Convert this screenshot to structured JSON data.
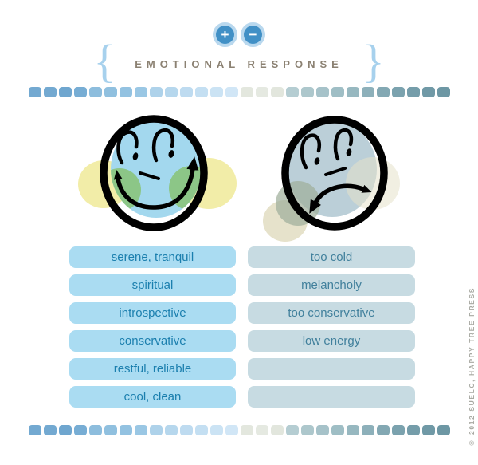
{
  "header": {
    "plus_button": "+",
    "minus_button": "−",
    "title": "EMOTIONAL RESPONSE",
    "brace_left": "{",
    "brace_right": "}"
  },
  "divider_colors": [
    "#73a9d1",
    "#73a9d1",
    "#6fa6cf",
    "#77add4",
    "#8dbddd",
    "#90c0df",
    "#93c2e1",
    "#9ac7e4",
    "#aed2ea",
    "#b6d7ed",
    "#bedbf0",
    "#c4dff2",
    "#cbe3f4",
    "#d1e6f6",
    "#e3e7de",
    "#e5e9e1",
    "#e2e6dd",
    "#b5cdd2",
    "#adc7cc",
    "#a6c2c9",
    "#9fbec5",
    "#97b8c0",
    "#8db0ba",
    "#83a8b3",
    "#7ba2ae",
    "#759daa",
    "#7099a6",
    "#6d97a4"
  ],
  "responses": {
    "positive": [
      "serene, tranquil",
      "spiritual",
      "introspective",
      "conservative",
      "restful, reliable",
      "cool, clean"
    ],
    "negative": [
      "too cold",
      "melancholy",
      "too conservative",
      "low energy",
      "",
      ""
    ]
  },
  "icons": {
    "plus": "plus-icon",
    "minus": "minus-icon",
    "happy_face": "happy-face-icon",
    "sad_face": "sad-face-icon"
  },
  "footer": {
    "copyright": "© 2012 SUELC, HAPPY TREE PRESS"
  },
  "colors": {
    "accent_blue": "#4190c6",
    "halo_blue": "#b9d8ee",
    "title_taupe": "#8b8172",
    "brace_blue": "#a7d1ed",
    "happy_fill": "#a3d8ee",
    "happy_ear": "#f2eda8",
    "happy_cheek": "#8cc687",
    "sad_fill": "#bbcfd8",
    "sad_ear": "#e6e2cb",
    "sad_cheek": "#9fae9b",
    "pill_pos_bg": "#aadcf2",
    "pill_pos_text": "#1b7fae",
    "pill_neg_bg": "#c7dbe2",
    "pill_neg_text": "#41809c",
    "copyright_gray": "#a8a9a2"
  }
}
